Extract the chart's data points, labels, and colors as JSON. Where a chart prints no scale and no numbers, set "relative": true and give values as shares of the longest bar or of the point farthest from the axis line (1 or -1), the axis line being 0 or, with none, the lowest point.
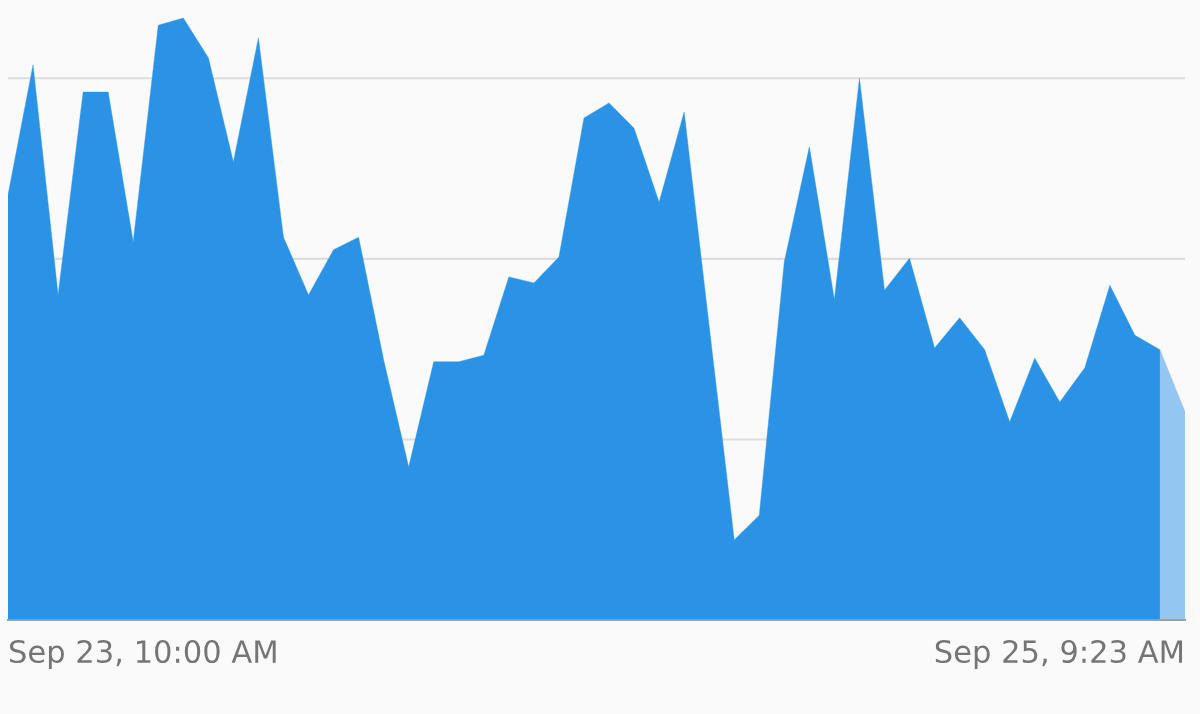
{
  "chart_data": {
    "type": "area",
    "relative": true,
    "grid": "y",
    "categories": [
      null,
      null,
      null,
      null,
      null,
      null,
      null,
      null,
      null,
      null,
      null,
      null,
      null,
      null,
      null,
      null,
      null,
      null,
      null,
      null,
      null,
      null,
      null,
      null,
      null,
      null,
      null,
      null,
      null,
      null,
      null,
      null,
      null,
      null,
      null,
      null,
      null,
      null,
      null,
      null,
      null,
      null,
      null,
      null,
      null,
      null,
      null,
      null
    ],
    "annotations": [
      "Sep 23, 10:00 AM",
      "Sep 25, 9:23 AM"
    ],
    "series": [
      {
        "color": "#2a93e6",
        "values": [
          0.706,
          0.922,
          0.54,
          0.877,
          0.877,
          0.628,
          0.988,
          1,
          0.934,
          0.761,
          0.967,
          0.636,
          0.54,
          0.615,
          0.636,
          0.432,
          0.254,
          0.429,
          0.429,
          0.44,
          0.57,
          0.56,
          0.603,
          0.834,
          0.859,
          0.817,
          0.694,
          0.844,
          0.488,
          0.133,
          0.174,
          0.595,
          0.786,
          0.532,
          0.9,
          0.548,
          0.601,
          0.452,
          0.502,
          0.449,
          0.329,
          0.435,
          0.362,
          0.419,
          0.556,
          0.473,
          0.449,
          null
        ]
      },
      {
        "color": "#94c6f2",
        "values": [
          null,
          null,
          null,
          null,
          null,
          null,
          null,
          null,
          null,
          null,
          null,
          null,
          null,
          null,
          null,
          null,
          null,
          null,
          null,
          null,
          null,
          null,
          null,
          null,
          null,
          null,
          null,
          null,
          null,
          null,
          null,
          null,
          null,
          null,
          null,
          null,
          null,
          null,
          null,
          null,
          null,
          null,
          null,
          null,
          null,
          null,
          0.449,
          0.346
        ]
      }
    ]
  }
}
